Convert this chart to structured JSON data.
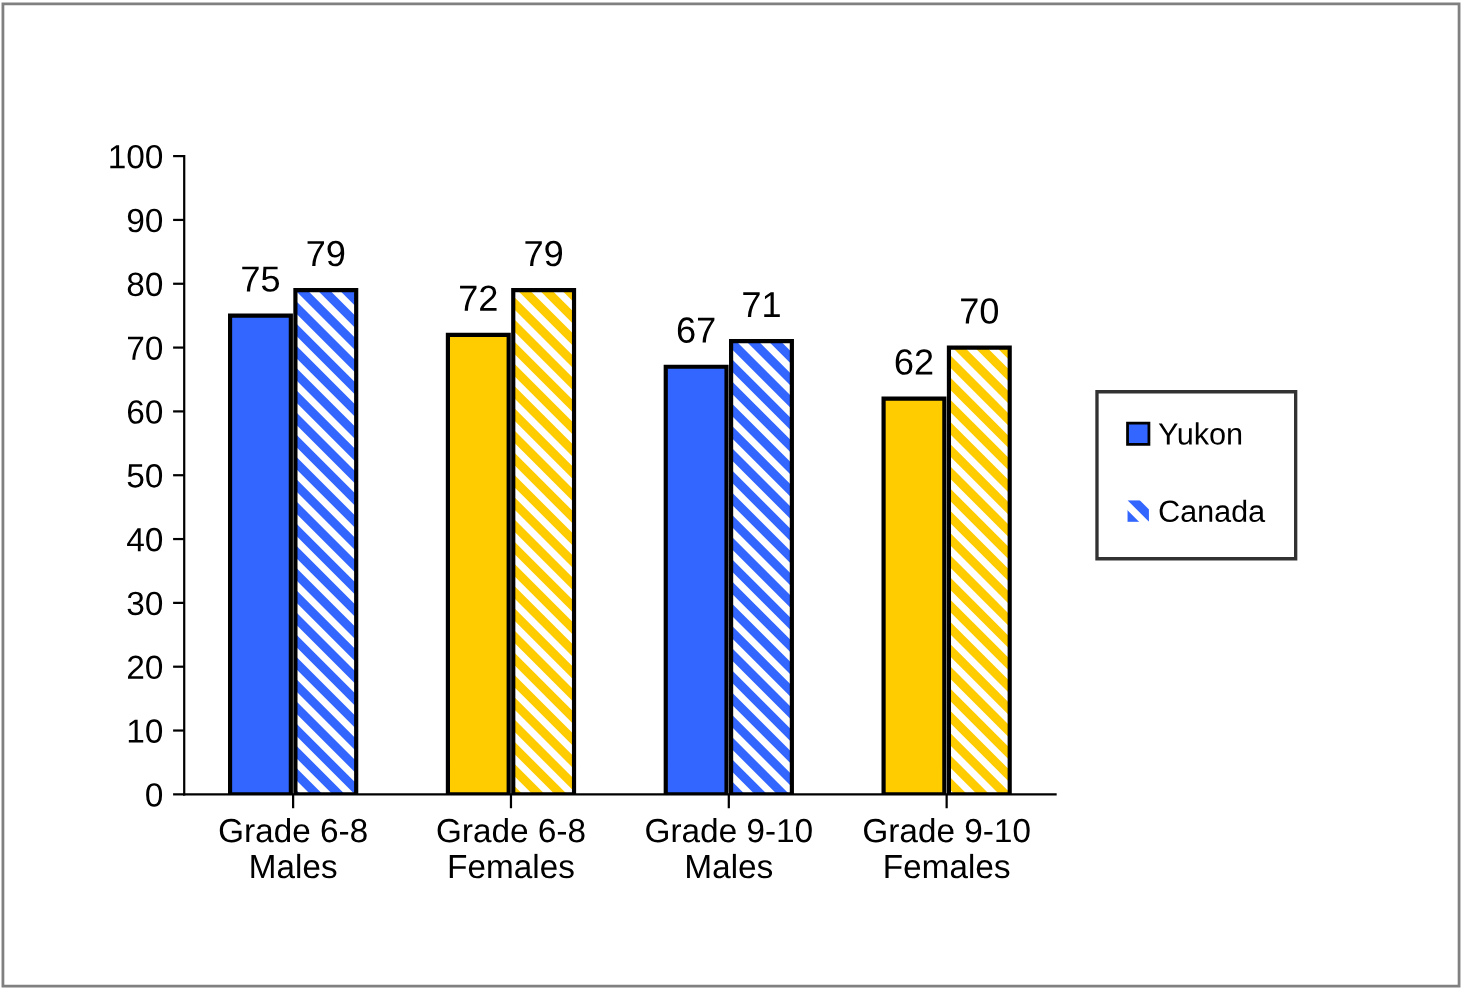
{
  "chart_data": {
    "type": "bar",
    "categories": [
      "Grade 6-8\nMales",
      "Grade 6-8\nFemales",
      "Grade 9-10\nMales",
      "Grade 9-10\nFemales"
    ],
    "series": [
      {
        "name": "Yukon",
        "colors": [
          "#3366ff",
          "#ffcc00",
          "#3366ff",
          "#ffcc00"
        ],
        "values": [
          75,
          72,
          67,
          62
        ]
      },
      {
        "name": "Canada",
        "colors": [
          "#3366ff",
          "#ffcc00",
          "#3366ff",
          "#ffcc00"
        ],
        "values": [
          79,
          79,
          71,
          70
        ]
      }
    ],
    "ylim": [
      0,
      100
    ],
    "yticks": [
      0,
      10,
      20,
      30,
      40,
      50,
      60,
      70,
      80,
      90,
      100
    ],
    "grid": false,
    "legend": "right",
    "data_labels": true
  }
}
